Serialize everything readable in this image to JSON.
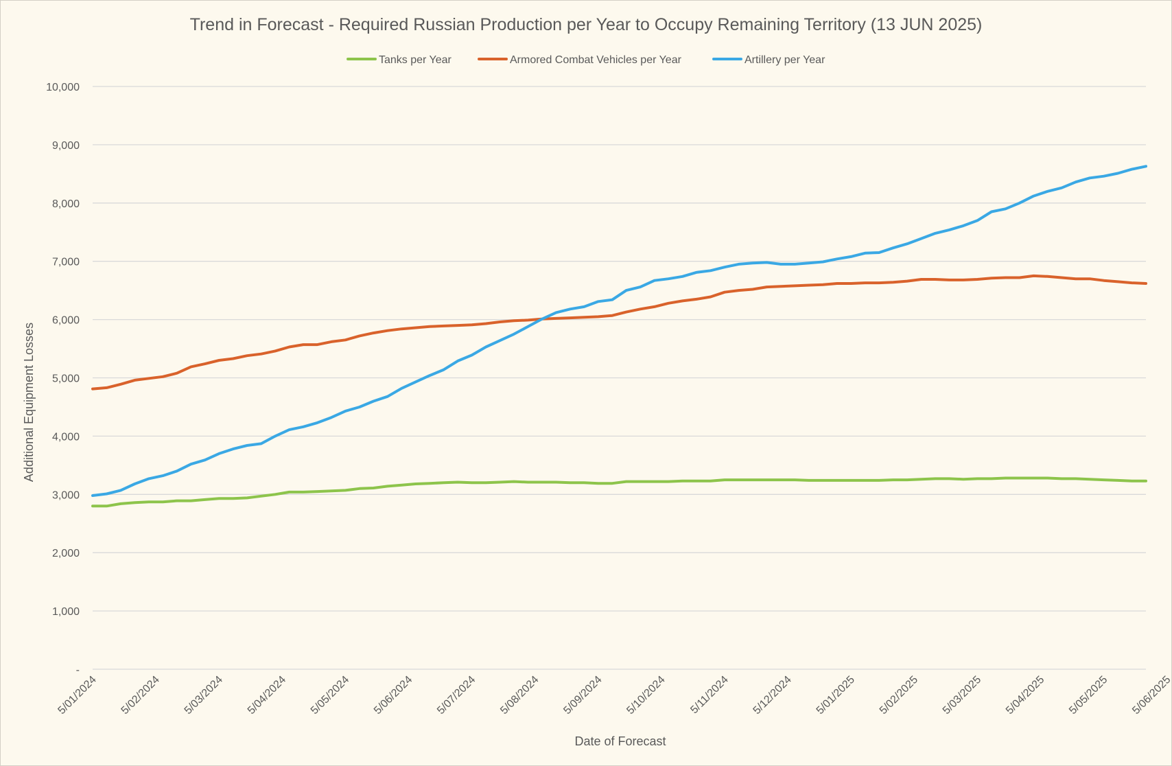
{
  "chart_data": {
    "type": "line",
    "title": "Trend in Forecast - Required Russian Production per Year to Occupy Remaining Territory (13 JUN 2025)",
    "xlabel": "Date of Forecast",
    "ylabel": "Additional Equipment Losses",
    "ylim": [
      0,
      10000
    ],
    "y_ticks": [
      0,
      1000,
      2000,
      3000,
      4000,
      5000,
      6000,
      7000,
      8000,
      9000,
      10000
    ],
    "y_tick_labels": [
      "-",
      "1,000",
      "2,000",
      "3,000",
      "4,000",
      "5,000",
      "6,000",
      "7,000",
      "8,000",
      "9,000",
      "10,000"
    ],
    "x_tick_labels": [
      "5/01/2024",
      "5/02/2024",
      "5/03/2024",
      "5/04/2024",
      "5/05/2024",
      "5/06/2024",
      "5/07/2024",
      "5/08/2024",
      "5/09/2024",
      "5/10/2024",
      "5/11/2024",
      "5/12/2024",
      "5/01/2025",
      "5/02/2025",
      "5/03/2025",
      "5/04/2025",
      "5/05/2025",
      "5/06/2025"
    ],
    "x_points_per_tick": 4.5,
    "grid": true,
    "legend_position": "top",
    "series": [
      {
        "name": "Tanks per Year",
        "color": "#8dc44b",
        "values": [
          2800,
          2800,
          2840,
          2860,
          2870,
          2870,
          2890,
          2890,
          2910,
          2930,
          2930,
          2940,
          2970,
          3000,
          3040,
          3040,
          3050,
          3060,
          3070,
          3100,
          3110,
          3140,
          3160,
          3180,
          3190,
          3200,
          3210,
          3200,
          3200,
          3210,
          3220,
          3210,
          3210,
          3210,
          3200,
          3200,
          3190,
          3190,
          3220,
          3220,
          3220,
          3220,
          3230,
          3230,
          3230,
          3250,
          3250,
          3250,
          3250,
          3250,
          3250,
          3240,
          3240,
          3240,
          3240,
          3240,
          3240,
          3250,
          3250,
          3260,
          3270,
          3270,
          3260,
          3270,
          3270,
          3280,
          3280,
          3280,
          3280,
          3270,
          3270,
          3260,
          3250,
          3240,
          3230,
          3230
        ]
      },
      {
        "name": "Armored Combat Vehicles per Year",
        "color": "#d9622b",
        "values": [
          4810,
          4830,
          4890,
          4960,
          4990,
          5020,
          5080,
          5190,
          5240,
          5300,
          5330,
          5380,
          5410,
          5460,
          5530,
          5570,
          5570,
          5620,
          5650,
          5720,
          5770,
          5810,
          5840,
          5860,
          5880,
          5890,
          5900,
          5910,
          5930,
          5960,
          5980,
          5990,
          6010,
          6020,
          6030,
          6040,
          6050,
          6070,
          6130,
          6180,
          6220,
          6280,
          6320,
          6350,
          6390,
          6470,
          6500,
          6520,
          6560,
          6570,
          6580,
          6590,
          6600,
          6620,
          6620,
          6630,
          6630,
          6640,
          6660,
          6690,
          6690,
          6680,
          6680,
          6690,
          6710,
          6720,
          6720,
          6750,
          6740,
          6720,
          6700,
          6700,
          6670,
          6650,
          6630,
          6620
        ]
      },
      {
        "name": "Artillery per Year",
        "color": "#3aa8e4",
        "values": [
          2980,
          3010,
          3070,
          3180,
          3270,
          3320,
          3400,
          3520,
          3590,
          3700,
          3780,
          3840,
          3870,
          4000,
          4110,
          4160,
          4230,
          4320,
          4430,
          4500,
          4600,
          4680,
          4820,
          4930,
          5040,
          5140,
          5290,
          5390,
          5530,
          5640,
          5750,
          5880,
          6010,
          6120,
          6180,
          6220,
          6310,
          6340,
          6500,
          6560,
          6670,
          6700,
          6740,
          6810,
          6840,
          6900,
          6950,
          6970,
          6980,
          6950,
          6950,
          6970,
          6990,
          7040,
          7080,
          7140,
          7150,
          7230,
          7300,
          7390,
          7480,
          7540,
          7610,
          7700,
          7850,
          7900,
          8000,
          8120,
          8200,
          8260,
          8360,
          8430,
          8460,
          8510,
          8580,
          8630
        ]
      }
    ]
  }
}
